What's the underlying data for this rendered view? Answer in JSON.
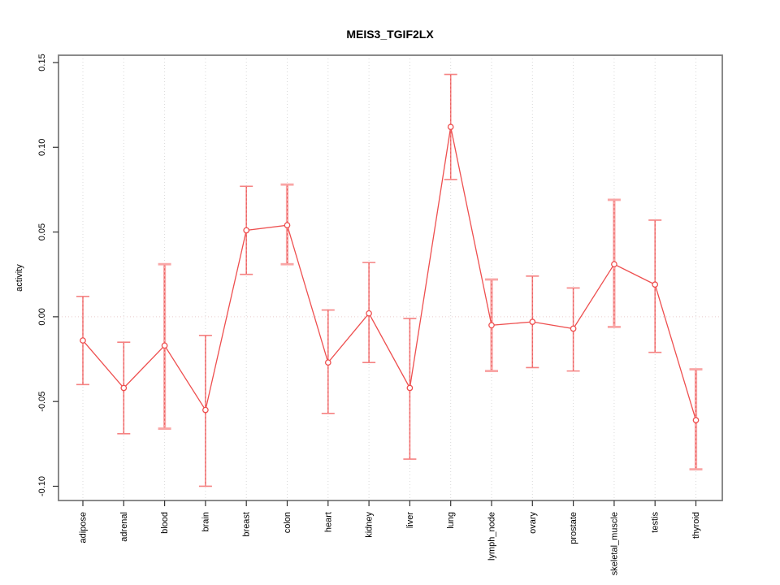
{
  "chart_data": {
    "type": "line",
    "title": "MEIS3_TGIF2LX",
    "ylabel": "activity",
    "xlabel": "",
    "legend_position": "none",
    "grid": "vertical-dotted",
    "zero_line": true,
    "ylim": [
      -0.1084,
      0.1543
    ],
    "y_ticks": [
      {
        "value": -0.1,
        "label": "-0.10"
      },
      {
        "value": -0.05,
        "label": "-0.05"
      },
      {
        "value": 0.0,
        "label": "0.00"
      },
      {
        "value": 0.05,
        "label": "0.05"
      },
      {
        "value": 0.1,
        "label": "0.10"
      },
      {
        "value": 0.15,
        "label": "0.15"
      }
    ],
    "categories": [
      "adipose",
      "adrenal",
      "blood",
      "brain",
      "breast",
      "colon",
      "heart",
      "kidney",
      "liver",
      "lung",
      "lymph_node",
      "ovary",
      "prostate",
      "skeletal_muscle",
      "testis",
      "thyroid"
    ],
    "series": [
      {
        "name": "activity",
        "values": [
          -0.014,
          -0.042,
          -0.017,
          -0.055,
          0.051,
          0.054,
          -0.027,
          0.002,
          -0.042,
          0.112,
          -0.005,
          -0.003,
          -0.007,
          0.031,
          0.019,
          -0.061
        ],
        "lower": [
          -0.04,
          -0.069,
          -0.066,
          -0.1,
          0.025,
          0.031,
          -0.057,
          -0.027,
          -0.084,
          0.081,
          -0.032,
          -0.03,
          -0.032,
          -0.006,
          -0.021,
          -0.09
        ],
        "upper": [
          0.012,
          -0.015,
          0.031,
          -0.011,
          0.077,
          0.078,
          0.004,
          0.032,
          -0.001,
          0.143,
          0.022,
          0.024,
          0.017,
          0.069,
          0.057,
          -0.031
        ],
        "errorbar_style": [
          "thin",
          "thin",
          "thick",
          "thin",
          "thin",
          "thick",
          "thin",
          "thin",
          "thin",
          "thin",
          "thick",
          "thin",
          "thin",
          "thick",
          "thin",
          "thick"
        ]
      }
    ],
    "colors": {
      "point_line": "#ee4f4f",
      "errorbar_thin": "#f58282",
      "errorbar_thick": "#f9a6a6",
      "errorbar_core": "#e85b5b",
      "zero_line": "#e9cbcb",
      "gridline": "#d9d9d9",
      "frame": "#7d7d7d",
      "tick": "#333333",
      "text": "#000000",
      "background": "#ffffff"
    }
  }
}
